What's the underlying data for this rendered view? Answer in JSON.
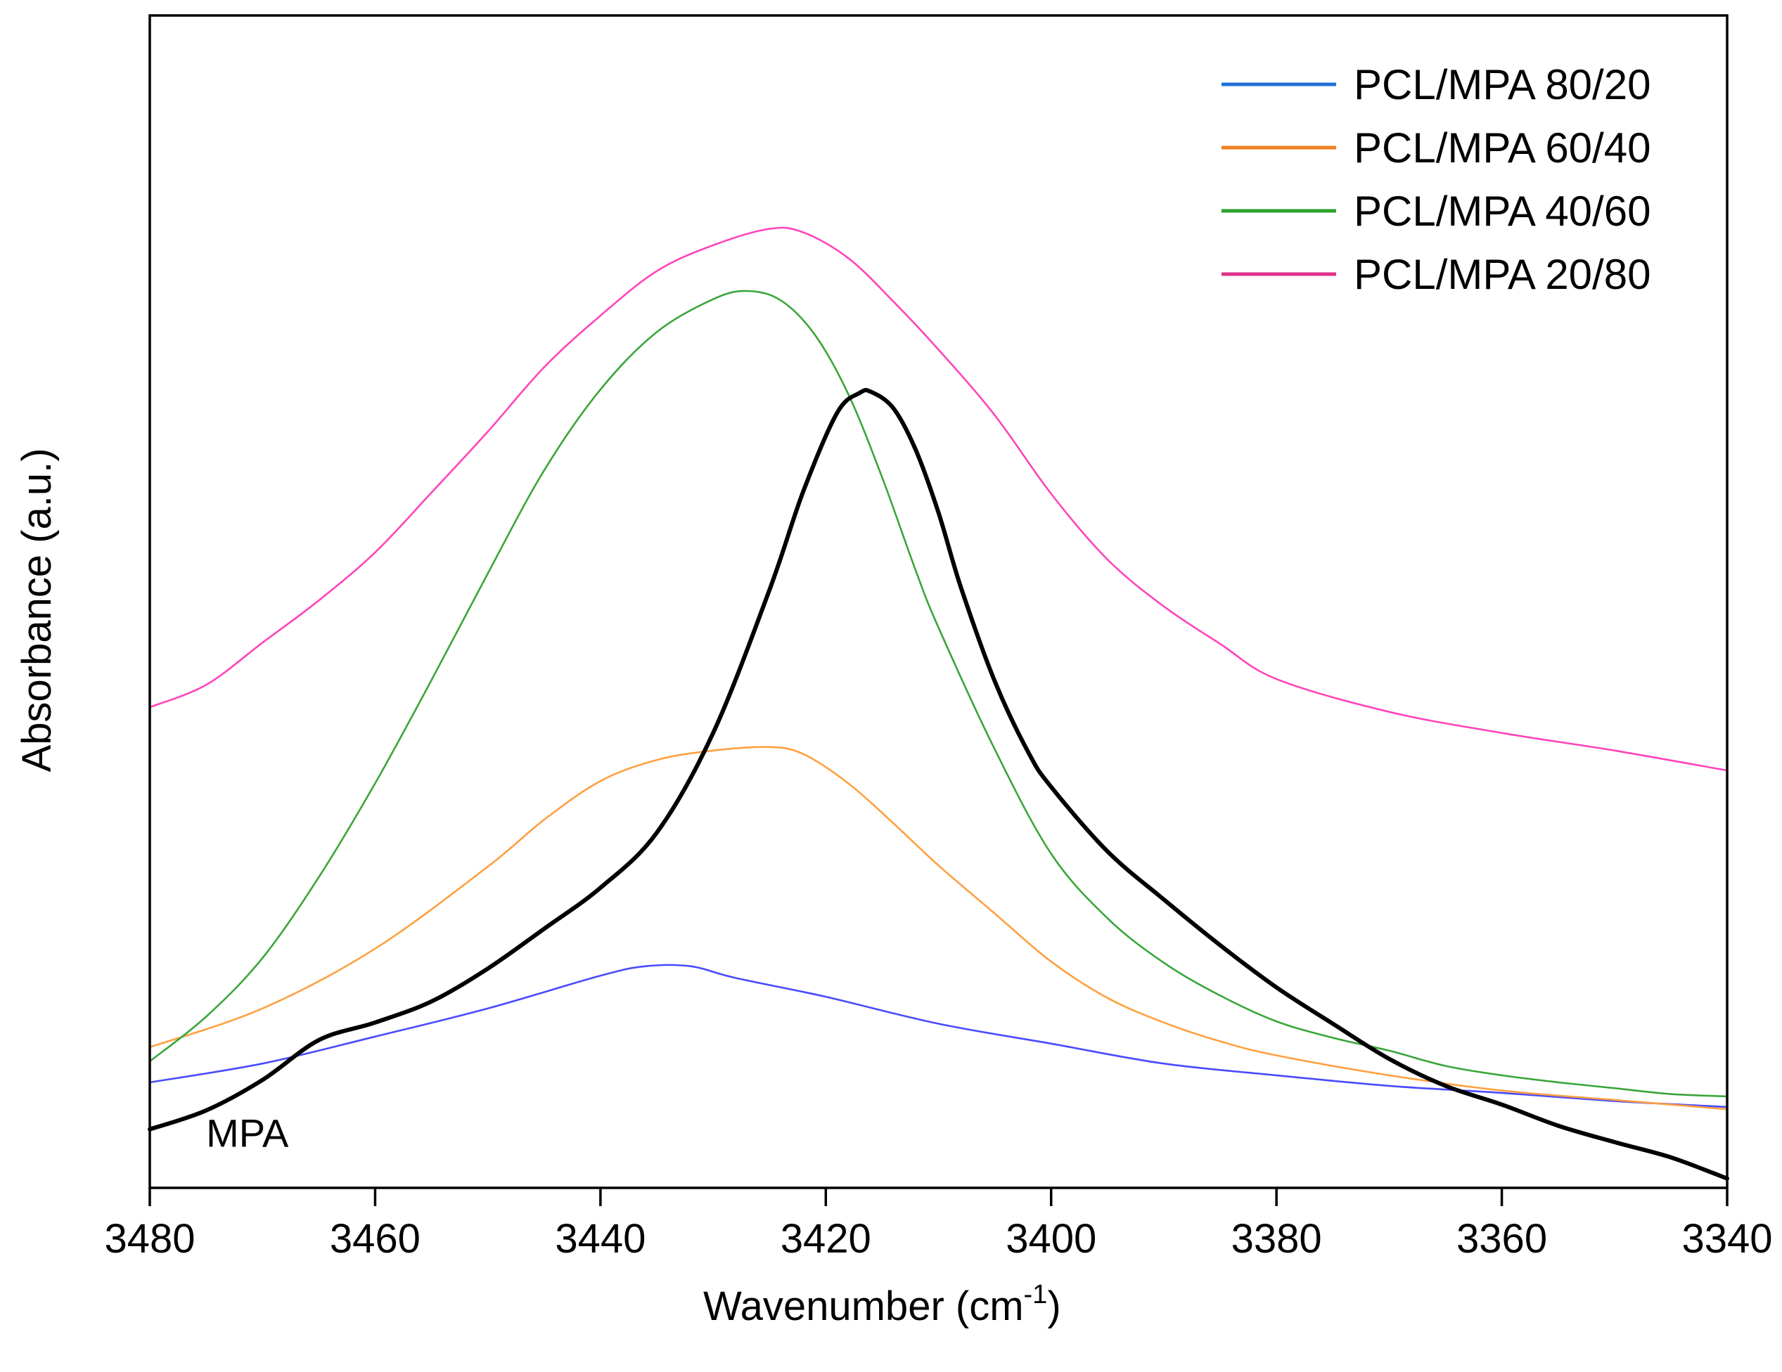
{
  "chart_data": {
    "type": "line",
    "title": "",
    "xlabel": "Wavenumber (cm",
    "xlabel_superscript": "-1",
    "xlabel_suffix": ")",
    "ylabel": "Absorbance (a.u.)",
    "xlim": [
      3480,
      3340
    ],
    "ylim": [
      0,
      100
    ],
    "x_ticks": [
      3480,
      3460,
      3440,
      3420,
      3400,
      3380,
      3360,
      3340
    ],
    "x_tick_labels": [
      "3480",
      "3460",
      "3440",
      "3420",
      "3400",
      "3380",
      "3360",
      "3340"
    ],
    "y_ticks_shown": false,
    "grid": false,
    "legend_position": "top-right",
    "annotations": [
      {
        "text": "MPA",
        "x": 3475,
        "y": 3.5
      }
    ],
    "series": [
      {
        "name": "PCL/MPA 80/20",
        "legend_color": "#1f6fd6",
        "line_color": "#4a4aff",
        "stroke": "thin",
        "in_legend": true,
        "x": [
          3480,
          3470,
          3460,
          3450,
          3440,
          3436,
          3432,
          3428,
          3420,
          3410,
          3400,
          3390,
          3380,
          3370,
          3360,
          3350,
          3340
        ],
        "y": [
          9.0,
          10.6,
          12.9,
          15.3,
          18.1,
          18.9,
          18.9,
          17.9,
          16.3,
          14.0,
          12.3,
          10.6,
          9.6,
          8.7,
          8.1,
          7.4,
          6.9
        ]
      },
      {
        "name": "PCL/MPA 60/40",
        "legend_color": "#f07f20",
        "line_color": "#ffa040",
        "stroke": "thin",
        "in_legend": true,
        "x": [
          3480,
          3470,
          3460,
          3450,
          3445,
          3440,
          3435,
          3430,
          3425,
          3422,
          3418,
          3414,
          3410,
          3405,
          3400,
          3395,
          3390,
          3385,
          3380,
          3370,
          3360,
          3350,
          3340
        ],
        "y": [
          12.0,
          15.3,
          20.4,
          27.4,
          31.4,
          34.7,
          36.5,
          37.3,
          37.6,
          37.0,
          34.5,
          31.1,
          27.5,
          23.4,
          19.3,
          16.2,
          14.1,
          12.5,
          11.3,
          9.6,
          8.3,
          7.5,
          6.7
        ]
      },
      {
        "name": "PCL/MPA 40/60",
        "legend_color": "#2ca02c",
        "line_color": "#3aa63a",
        "stroke": "thin",
        "in_legend": true,
        "x": [
          3480,
          3475,
          3470,
          3465,
          3460,
          3455,
          3450,
          3445,
          3440,
          3435,
          3430,
          3427,
          3424,
          3421,
          3418,
          3415,
          3412,
          3410,
          3405,
          3400,
          3395,
          3390,
          3385,
          3380,
          3375,
          3370,
          3365,
          3360,
          3355,
          3350,
          3345,
          3340
        ],
        "y": [
          10.8,
          14.6,
          19.6,
          26.5,
          34.5,
          43.3,
          52.4,
          61.2,
          68.1,
          73.0,
          75.8,
          76.5,
          75.7,
          72.8,
          67.7,
          60.6,
          52.6,
          47.8,
          37.4,
          28.5,
          23.0,
          19.2,
          16.4,
          14.2,
          12.8,
          11.7,
          10.4,
          9.6,
          9.0,
          8.5,
          8.0,
          7.8
        ]
      },
      {
        "name": "PCL/MPA 20/80",
        "legend_color": "#e0308a",
        "line_color": "#ff44bb",
        "stroke": "thin",
        "in_legend": true,
        "x": [
          3480,
          3475,
          3470,
          3465,
          3460,
          3455,
          3450,
          3445,
          3440,
          3435,
          3430,
          3425,
          3422,
          3418,
          3414,
          3410,
          3405,
          3400,
          3395,
          3390,
          3385,
          3380,
          3370,
          3360,
          3350,
          3340
        ],
        "y": [
          41.0,
          42.9,
          46.5,
          50.1,
          54.2,
          59.3,
          64.5,
          70.0,
          74.4,
          78.2,
          80.4,
          81.8,
          81.5,
          79.3,
          75.6,
          71.5,
          65.9,
          59.2,
          53.6,
          49.6,
          46.4,
          43.4,
          40.6,
          38.8,
          37.3,
          35.6
        ]
      },
      {
        "name": "MPA",
        "legend_color": "#000000",
        "line_color": "#000000",
        "stroke": "thick",
        "in_legend": false,
        "x": [
          3480,
          3475,
          3470,
          3465,
          3460,
          3455,
          3450,
          3445,
          3440,
          3435,
          3430,
          3425,
          3422,
          3419,
          3417,
          3416,
          3414,
          3412,
          3410,
          3408,
          3405,
          3402,
          3400,
          3395,
          3390,
          3385,
          3380,
          3375,
          3370,
          3365,
          3360,
          3355,
          3350,
          3345,
          3340
        ],
        "y": [
          5.0,
          6.6,
          9.2,
          12.6,
          14.1,
          15.9,
          18.7,
          22.1,
          25.6,
          30.3,
          38.8,
          51.0,
          59.4,
          66.1,
          67.8,
          67.9,
          66.5,
          62.9,
          57.6,
          51.2,
          43.2,
          37.1,
          34.2,
          28.7,
          24.6,
          20.7,
          17.1,
          14.0,
          11.0,
          8.7,
          7.1,
          5.3,
          3.9,
          2.6,
          0.8
        ]
      }
    ]
  }
}
